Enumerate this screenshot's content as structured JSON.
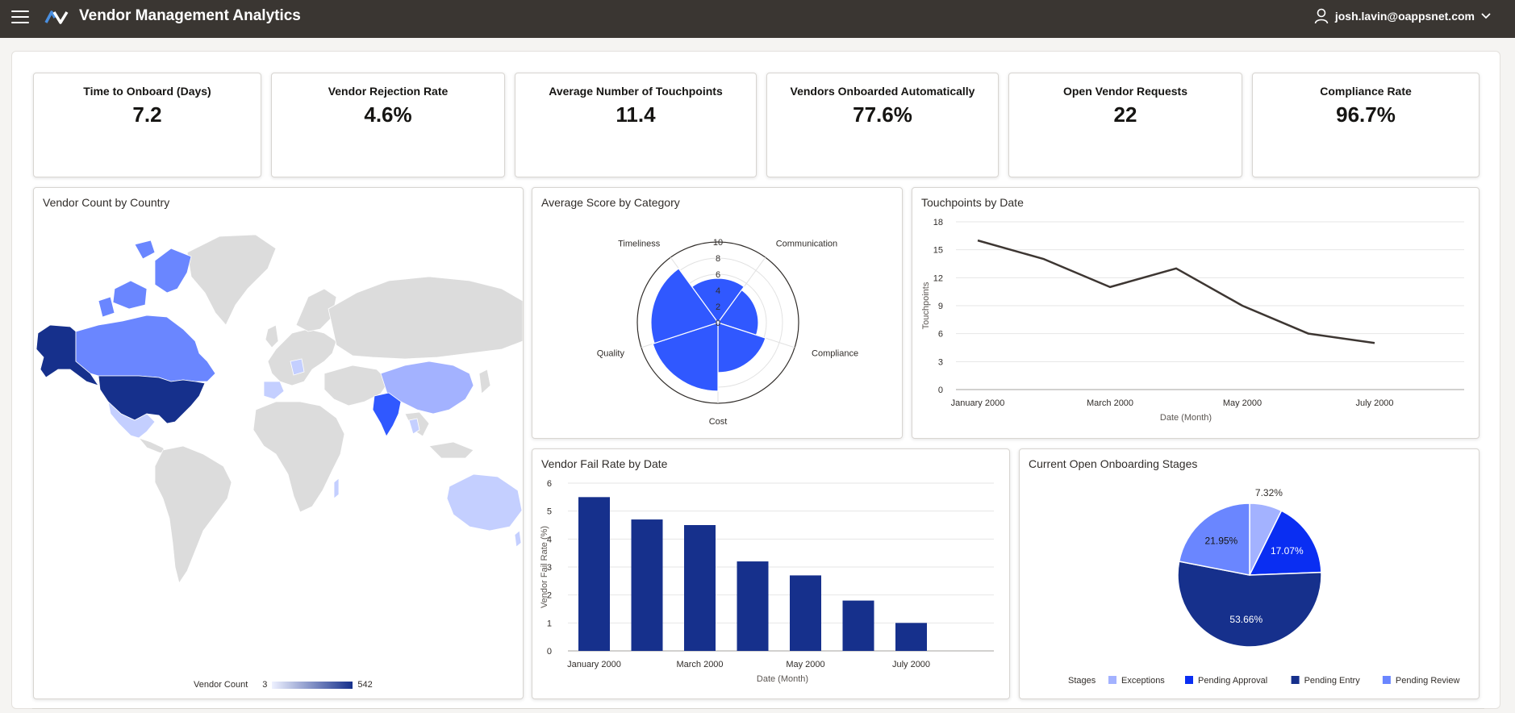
{
  "header": {
    "app_title": "Vendor Management Analytics",
    "user_email": "josh.lavin@oappsnet.com"
  },
  "icons": {
    "menu": "hamburger-icon",
    "logo": "app-logo",
    "user": "user-icon",
    "dropdown": "chevron-down-icon"
  },
  "kpis": [
    {
      "title": "Time to Onboard (Days)",
      "value": "7.2"
    },
    {
      "title": "Vendor Rejection Rate",
      "value": "4.6%"
    },
    {
      "title": "Average Number of Touchpoints",
      "value": "11.4"
    },
    {
      "title": "Vendors Onboarded Automatically",
      "value": "77.6%"
    },
    {
      "title": "Open Vendor Requests",
      "value": "22"
    },
    {
      "title": "Compliance Rate",
      "value": "96.7%"
    }
  ],
  "map": {
    "title": "Vendor Count by Country",
    "legend_label": "Vendor Count",
    "legend_min": "3",
    "legend_max": "542",
    "colors": {
      "low": "#e8ecff",
      "high": "#16308c",
      "none": "#dcdcdc"
    }
  },
  "chart_data": [
    {
      "type": "polar-area",
      "title": "Average Score by Category",
      "categories": [
        "Timeliness",
        "Communication",
        "Compliance",
        "Cost",
        "Quality"
      ],
      "values": [
        5.5,
        5.0,
        6.2,
        8.5,
        8.3
      ],
      "rlim": [
        0,
        10
      ],
      "rticks": [
        "10",
        "8",
        "6",
        "4",
        "2",
        "0"
      ],
      "color": "#3058ff"
    },
    {
      "type": "line",
      "title": "Touchpoints by Date",
      "x": [
        "January 2000",
        "February 2000",
        "March 2000",
        "April 2000",
        "May 2000",
        "June 2000",
        "July 2000"
      ],
      "xtick_labels": [
        "January 2000",
        "March 2000",
        "May 2000",
        "July 2000"
      ],
      "values": [
        16,
        14,
        11,
        13,
        9,
        6,
        5
      ],
      "yticks": [
        "0",
        "3",
        "6",
        "9",
        "12",
        "15",
        "18"
      ],
      "ylim": [
        0,
        18
      ],
      "xlabel": "Date (Month)",
      "ylabel": "Touchpoints",
      "color": "#3d3632"
    },
    {
      "type": "bar",
      "title": "Vendor Fail Rate by Date",
      "categories": [
        "January 2000",
        "February 2000",
        "March 2000",
        "April 2000",
        "May 2000",
        "June 2000",
        "July 2000"
      ],
      "xtick_labels": [
        "January 2000",
        "March 2000",
        "May 2000",
        "July 2000"
      ],
      "values": [
        5.5,
        4.7,
        4.5,
        3.2,
        2.7,
        1.8,
        1.0
      ],
      "yticks": [
        "0",
        "1",
        "2",
        "3",
        "4",
        "5",
        "6"
      ],
      "ylim": [
        0,
        6
      ],
      "xlabel": "Date (Month)",
      "ylabel": "Vendor Fail Rate (%)",
      "color": "#16308c"
    },
    {
      "type": "pie",
      "title": "Current Open Onboarding Stages",
      "legend_title": "Stages",
      "slices": [
        {
          "name": "Exceptions",
          "value": 7.32,
          "label": "7.32%",
          "color": "#a3b2ff"
        },
        {
          "name": "Pending Approval",
          "value": 17.07,
          "label": "17.07%",
          "color": "#0a2ef2"
        },
        {
          "name": "Pending Entry",
          "value": 53.66,
          "label": "53.66%",
          "color": "#16308c"
        },
        {
          "name": "Pending Review",
          "value": 21.95,
          "label": "21.95%",
          "color": "#6a86ff"
        }
      ]
    }
  ]
}
